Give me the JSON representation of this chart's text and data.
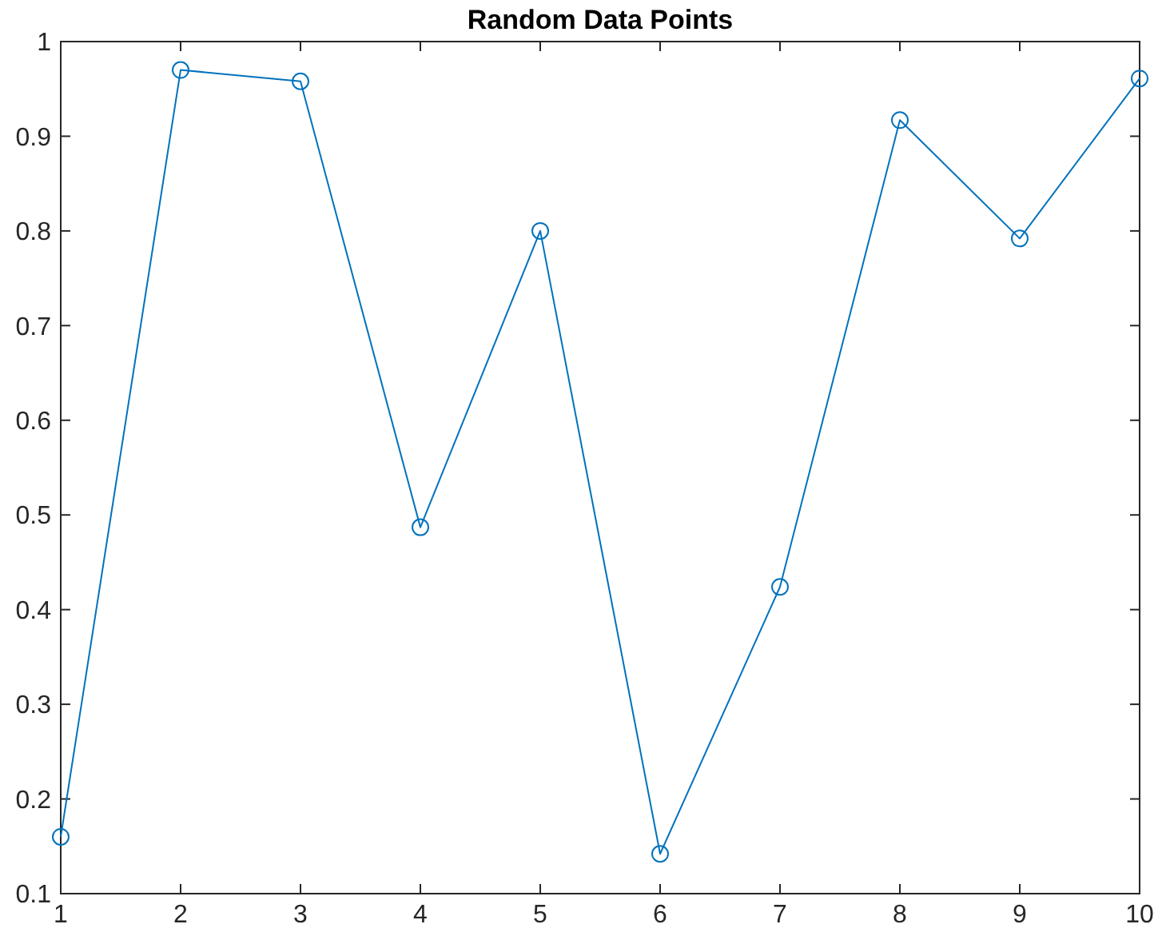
{
  "chart_data": {
    "type": "line",
    "title": "Random Data Points",
    "x": [
      1,
      2,
      3,
      4,
      5,
      6,
      7,
      8,
      9,
      10
    ],
    "series": [
      {
        "color": "#0072bd",
        "values": [
          0.16,
          0.97,
          0.958,
          0.487,
          0.8,
          0.142,
          0.424,
          0.917,
          0.792,
          0.961
        ]
      }
    ],
    "xlim": [
      1,
      10
    ],
    "xticks": [
      1,
      2,
      3,
      4,
      5,
      6,
      7,
      8,
      9,
      10
    ],
    "ylim": [
      0.1,
      1
    ],
    "yticks": [
      0.1,
      0.2,
      0.3,
      0.4,
      0.5,
      0.6,
      0.7,
      0.8,
      0.9,
      1
    ],
    "marker": "circle",
    "line_style": "solid",
    "grid": false
  }
}
